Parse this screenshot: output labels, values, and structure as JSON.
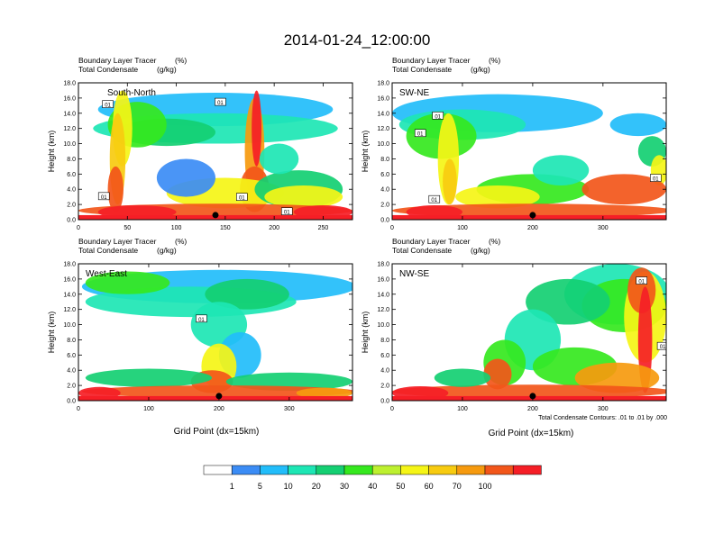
{
  "title": "2014-01-24_12:00:00",
  "panel_label_1": "Boundary Layer Tracer",
  "panel_unit_1": "(%)",
  "panel_label_2": "Total Condensate",
  "panel_unit_2": "(g/kg)",
  "y_axis_label": "Height (km)",
  "x_axis_label": "Grid Point (dx=15km)",
  "contour_note": "Total Condensate Contours: .01 to .01 by .000",
  "contour_value_label": "01",
  "colors": {
    "levels": [
      "#ffffff",
      "#3b8cf5",
      "#22bdfa",
      "#1de6b4",
      "#14cf72",
      "#35e81e",
      "#bdf02f",
      "#f5f516",
      "#f7cb10",
      "#f69a0e",
      "#f2561a",
      "#f51e26"
    ],
    "contour": "#000000",
    "axis": "#000000"
  },
  "chart_data": [
    {
      "type": "heatmap",
      "section": "South-North",
      "xlim": [
        0,
        280
      ],
      "xticks": [
        0,
        50,
        100,
        150,
        200,
        250
      ],
      "ylim": [
        0,
        18
      ],
      "yticks": [
        0.0,
        2.0,
        4.0,
        6.0,
        8.0,
        10.0,
        12.0,
        14.0,
        16.0,
        18.0
      ],
      "ylabel": "Height (km)",
      "xlabel": "",
      "marker_x": 140,
      "contour_label_positions": [
        [
          30,
          15.2
        ],
        [
          26,
          3.1
        ],
        [
          145,
          15.5
        ],
        [
          167,
          3.0
        ],
        [
          213,
          1.1
        ]
      ]
    },
    {
      "type": "heatmap",
      "section": "SW-NE",
      "xlim": [
        0,
        390
      ],
      "xticks": [
        0,
        100,
        200,
        300
      ],
      "ylim": [
        0,
        18
      ],
      "yticks": [
        0.0,
        2.0,
        4.0,
        6.0,
        8.0,
        10.0,
        12.0,
        14.0,
        16.0,
        18.0
      ],
      "ylabel": "Height (km)",
      "xlabel": "",
      "marker_x": 200,
      "contour_label_positions": [
        [
          65,
          13.7
        ],
        [
          40,
          11.4
        ],
        [
          60,
          2.7
        ],
        [
          375,
          5.5
        ]
      ]
    },
    {
      "type": "heatmap",
      "section": "West-East",
      "xlim": [
        0,
        390
      ],
      "xticks": [
        0,
        100,
        200,
        300
      ],
      "ylim": [
        0,
        18
      ],
      "yticks": [
        0.0,
        2.0,
        4.0,
        6.0,
        8.0,
        10.0,
        12.0,
        14.0,
        16.0,
        18.0
      ],
      "ylabel": "Height (km)",
      "xlabel": "Grid Point (dx=15km)",
      "marker_x": 200,
      "contour_label_positions": [
        [
          175,
          10.8
        ]
      ]
    },
    {
      "type": "heatmap",
      "section": "NW-SE",
      "xlim": [
        0,
        390
      ],
      "xticks": [
        0,
        100,
        200,
        300
      ],
      "ylim": [
        0,
        18
      ],
      "yticks": [
        0.0,
        2.0,
        4.0,
        6.0,
        8.0,
        10.0,
        12.0,
        14.0,
        16.0,
        18.0
      ],
      "ylabel": "Height (km)",
      "xlabel": "Grid Point (dx=15km)",
      "marker_x": 200,
      "contour_label_positions": [
        [
          355,
          15.8
        ],
        [
          385,
          7.2
        ]
      ]
    }
  ],
  "legend": {
    "labels": [
      "1",
      "5",
      "10",
      "20",
      "30",
      "40",
      "50",
      "60",
      "70",
      "100"
    ]
  }
}
